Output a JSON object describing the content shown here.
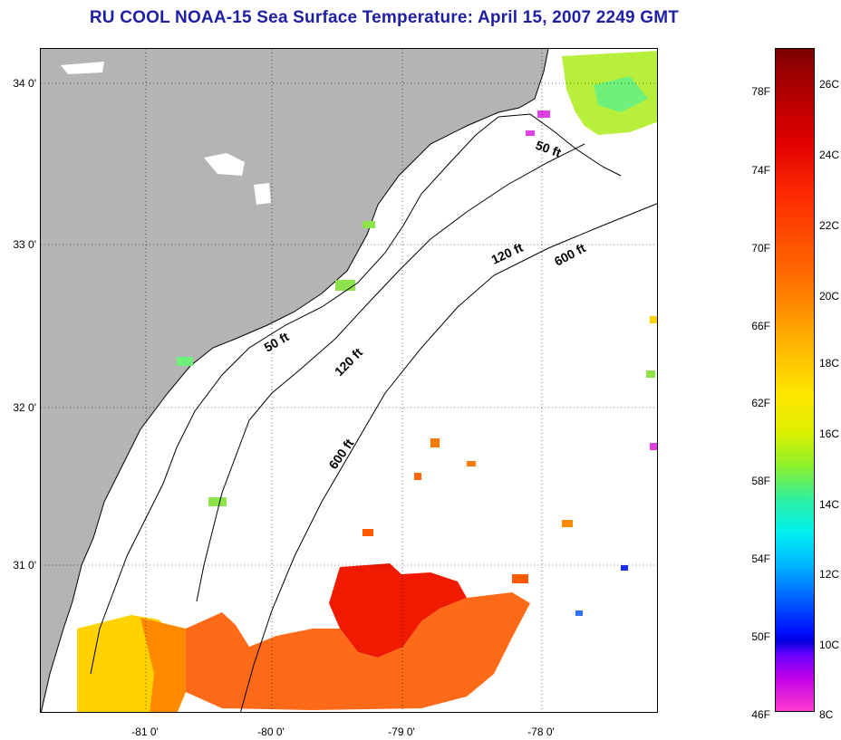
{
  "title": "RU COOL  NOAA-15  Sea Surface Temperature:  April 15, 2007 2249 GMT",
  "lat_labels": [
    "34 0'",
    "33 0'",
    "32 0'",
    "31 0'"
  ],
  "lon_labels": [
    "-81 0'",
    "-80 0'",
    "-79 0'",
    "-78 0'"
  ],
  "contour_labels": [
    "50 ft",
    "120 ft",
    "600 ft",
    "50 ft",
    "120 ft",
    "600 ft"
  ],
  "colorbar": {
    "fahrenheit": [
      "78F",
      "74F",
      "70F",
      "66F",
      "62F",
      "58F",
      "54F",
      "50F",
      "46F"
    ],
    "celsius": [
      "26C",
      "24C",
      "22C",
      "20C",
      "18C",
      "16C",
      "14C",
      "12C",
      "10C",
      "8C"
    ]
  },
  "colors": {
    "title": "#1f1fa6",
    "land": "#b4b4b4",
    "ocean_nodata": "#ffffff",
    "warm": "#ff2a00",
    "cool": "#b8ef3c"
  }
}
